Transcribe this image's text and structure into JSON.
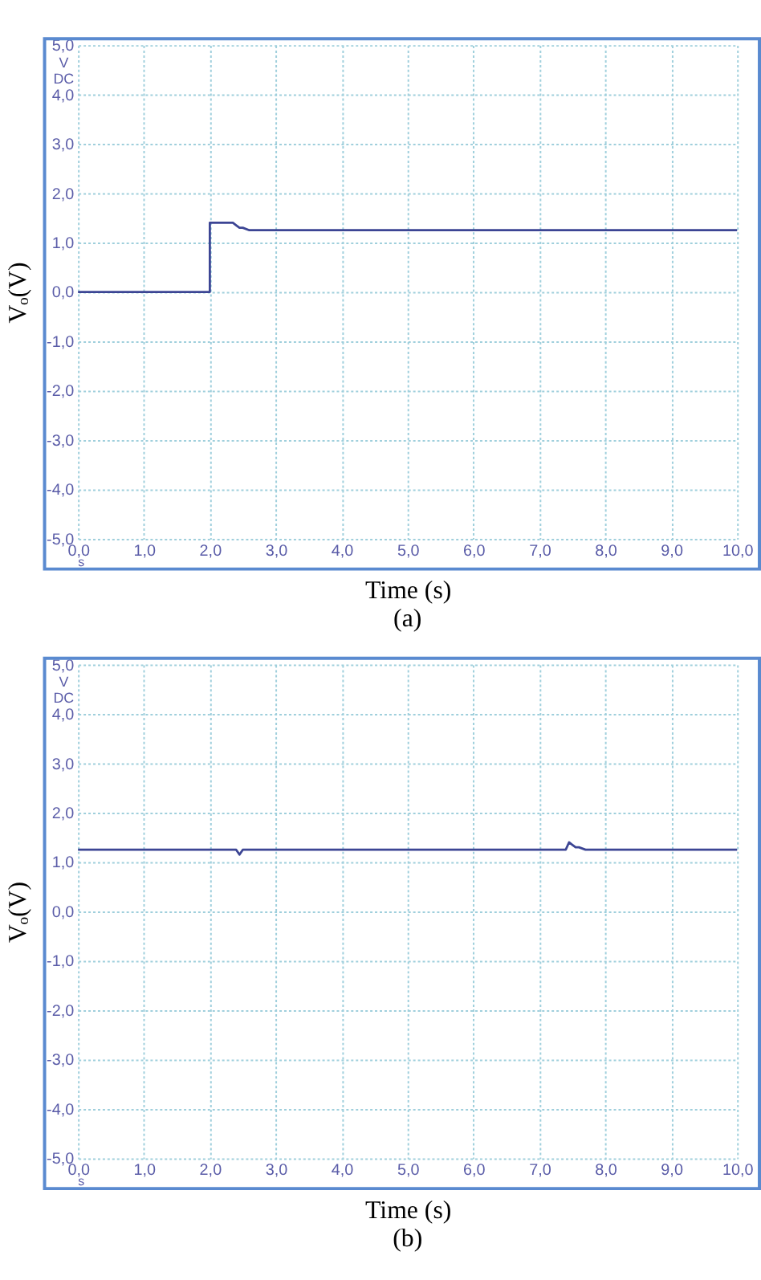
{
  "chart_data": [
    {
      "type": "line",
      "title": "(a)",
      "xlabel": "Time (s)",
      "ylabel": "Vₒ(V)",
      "annotations": [
        "V DC",
        "s"
      ],
      "color": "#3c4594",
      "x": [
        0,
        0.5,
        1,
        1.5,
        2,
        2,
        2.1,
        2.2,
        2.3,
        2.35,
        2.4,
        2.45,
        2.5,
        2.6,
        2.8,
        3,
        3.5,
        4,
        4.5,
        5,
        5.5,
        6,
        6.5,
        7,
        7.5,
        8,
        8.5,
        9,
        9.5,
        10
      ],
      "values": [
        0,
        0,
        0,
        0,
        0,
        1.4,
        1.4,
        1.4,
        1.4,
        1.4,
        1.35,
        1.3,
        1.3,
        1.25,
        1.25,
        1.25,
        1.25,
        1.25,
        1.25,
        1.25,
        1.25,
        1.25,
        1.25,
        1.25,
        1.25,
        1.25,
        1.25,
        1.25,
        1.25,
        1.25
      ],
      "xlim": [
        0,
        10
      ],
      "xticks": [
        {
          "value": 0,
          "label": "0,0"
        },
        {
          "value": 1,
          "label": "1,0"
        },
        {
          "value": 2,
          "label": "2,0"
        },
        {
          "value": 3,
          "label": "3,0"
        },
        {
          "value": 4,
          "label": "4,0"
        },
        {
          "value": 5,
          "label": "5,0"
        },
        {
          "value": 6,
          "label": "6,0"
        },
        {
          "value": 7,
          "label": "7,0"
        },
        {
          "value": 8,
          "label": "8,0"
        },
        {
          "value": 9,
          "label": "9,0"
        },
        {
          "value": 10,
          "label": "10,0"
        }
      ],
      "ylim": [
        -5,
        5
      ],
      "yticks": [
        {
          "value": -5,
          "label": "-5,0"
        },
        {
          "value": -4,
          "label": "-4,0"
        },
        {
          "value": -3,
          "label": "-3,0"
        },
        {
          "value": -2,
          "label": "-2,0"
        },
        {
          "value": -1,
          "label": "-1,0"
        },
        {
          "value": 0,
          "label": "0,0"
        },
        {
          "value": 1,
          "label": "1,0"
        },
        {
          "value": 2,
          "label": "2,0"
        },
        {
          "value": 3,
          "label": "3,0"
        },
        {
          "value": 4,
          "label": "4,0"
        },
        {
          "value": 5,
          "label": "5,0"
        }
      ],
      "grid": true
    },
    {
      "type": "line",
      "title": "(b)",
      "xlabel": "Time (s)",
      "ylabel": "Vₒ(V)",
      "annotations": [
        "V DC",
        "s"
      ],
      "color": "#3c4594",
      "x": [
        0,
        0.5,
        1,
        1.5,
        2,
        2.4,
        2.45,
        2.5,
        3,
        3.5,
        4,
        4.5,
        5,
        5.5,
        6,
        6.5,
        7,
        7.4,
        7.45,
        7.5,
        7.55,
        7.6,
        7.7,
        7.8,
        8,
        8.5,
        9,
        9.5,
        10
      ],
      "values": [
        1.25,
        1.25,
        1.25,
        1.25,
        1.25,
        1.25,
        1.15,
        1.25,
        1.25,
        1.25,
        1.25,
        1.25,
        1.25,
        1.25,
        1.25,
        1.25,
        1.25,
        1.25,
        1.4,
        1.35,
        1.3,
        1.3,
        1.25,
        1.25,
        1.25,
        1.25,
        1.25,
        1.25,
        1.25
      ],
      "xlim": [
        0,
        10
      ],
      "xticks": [
        {
          "value": 0,
          "label": "0,0"
        },
        {
          "value": 1,
          "label": "1,0"
        },
        {
          "value": 2,
          "label": "2,0"
        },
        {
          "value": 3,
          "label": "3,0"
        },
        {
          "value": 4,
          "label": "4,0"
        },
        {
          "value": 5,
          "label": "5,0"
        },
        {
          "value": 6,
          "label": "6,0"
        },
        {
          "value": 7,
          "label": "7,0"
        },
        {
          "value": 8,
          "label": "8,0"
        },
        {
          "value": 9,
          "label": "9,0"
        },
        {
          "value": 10,
          "label": "10,0"
        }
      ],
      "ylim": [
        -5,
        5
      ],
      "yticks": [
        {
          "value": -5,
          "label": "-5,0"
        },
        {
          "value": -4,
          "label": "-4,0"
        },
        {
          "value": -3,
          "label": "-3,0"
        },
        {
          "value": -2,
          "label": "-2,0"
        },
        {
          "value": -1,
          "label": "-1,0"
        },
        {
          "value": 0,
          "label": "0,0"
        },
        {
          "value": 1,
          "label": "1,0"
        },
        {
          "value": 2,
          "label": "2,0"
        },
        {
          "value": 3,
          "label": "3,0"
        },
        {
          "value": 4,
          "label": "4,0"
        },
        {
          "value": 5,
          "label": "5,0"
        }
      ],
      "grid": true
    }
  ]
}
